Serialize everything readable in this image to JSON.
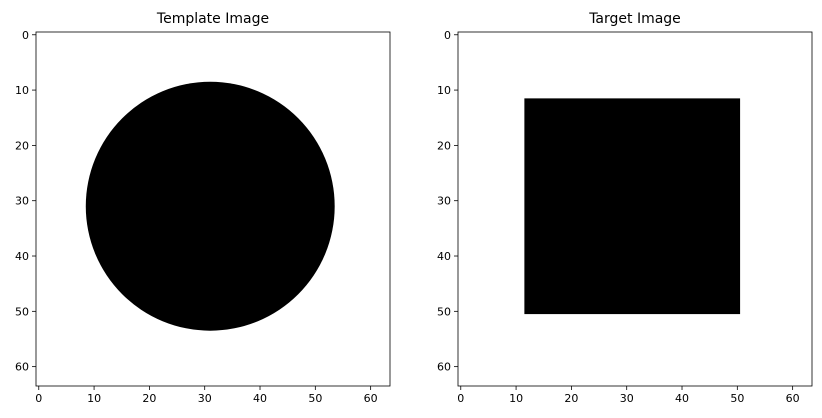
{
  "chart_data": [
    {
      "type": "image",
      "title": "Template Image",
      "colormap": "gray",
      "xlim": [
        -0.5,
        63.5
      ],
      "ylim": [
        63.5,
        -0.5
      ],
      "xticks": [
        0,
        10,
        20,
        30,
        40,
        50,
        60
      ],
      "yticks": [
        0,
        10,
        20,
        30,
        40,
        50,
        60
      ],
      "xtick_labels": [
        "0",
        "10",
        "20",
        "30",
        "40",
        "50",
        "60"
      ],
      "ytick_labels": [
        "0",
        "10",
        "20",
        "30",
        "40",
        "50",
        "60"
      ],
      "shape": {
        "kind": "circle",
        "center": [
          31,
          31
        ],
        "radius": 22.5,
        "fill": "#000000"
      },
      "background": "#ffffff"
    },
    {
      "type": "image",
      "title": "Target Image",
      "colormap": "gray",
      "xlim": [
        -0.5,
        63.5
      ],
      "ylim": [
        63.5,
        -0.5
      ],
      "xticks": [
        0,
        10,
        20,
        30,
        40,
        50,
        60
      ],
      "yticks": [
        0,
        10,
        20,
        30,
        40,
        50,
        60
      ],
      "xtick_labels": [
        "0",
        "10",
        "20",
        "30",
        "40",
        "50",
        "60"
      ],
      "ytick_labels": [
        "0",
        "10",
        "20",
        "30",
        "40",
        "50",
        "60"
      ],
      "shape": {
        "kind": "rectangle",
        "x_range": [
          12,
          50
        ],
        "y_range": [
          12,
          50
        ],
        "fill": "#000000"
      },
      "background": "#ffffff"
    }
  ]
}
